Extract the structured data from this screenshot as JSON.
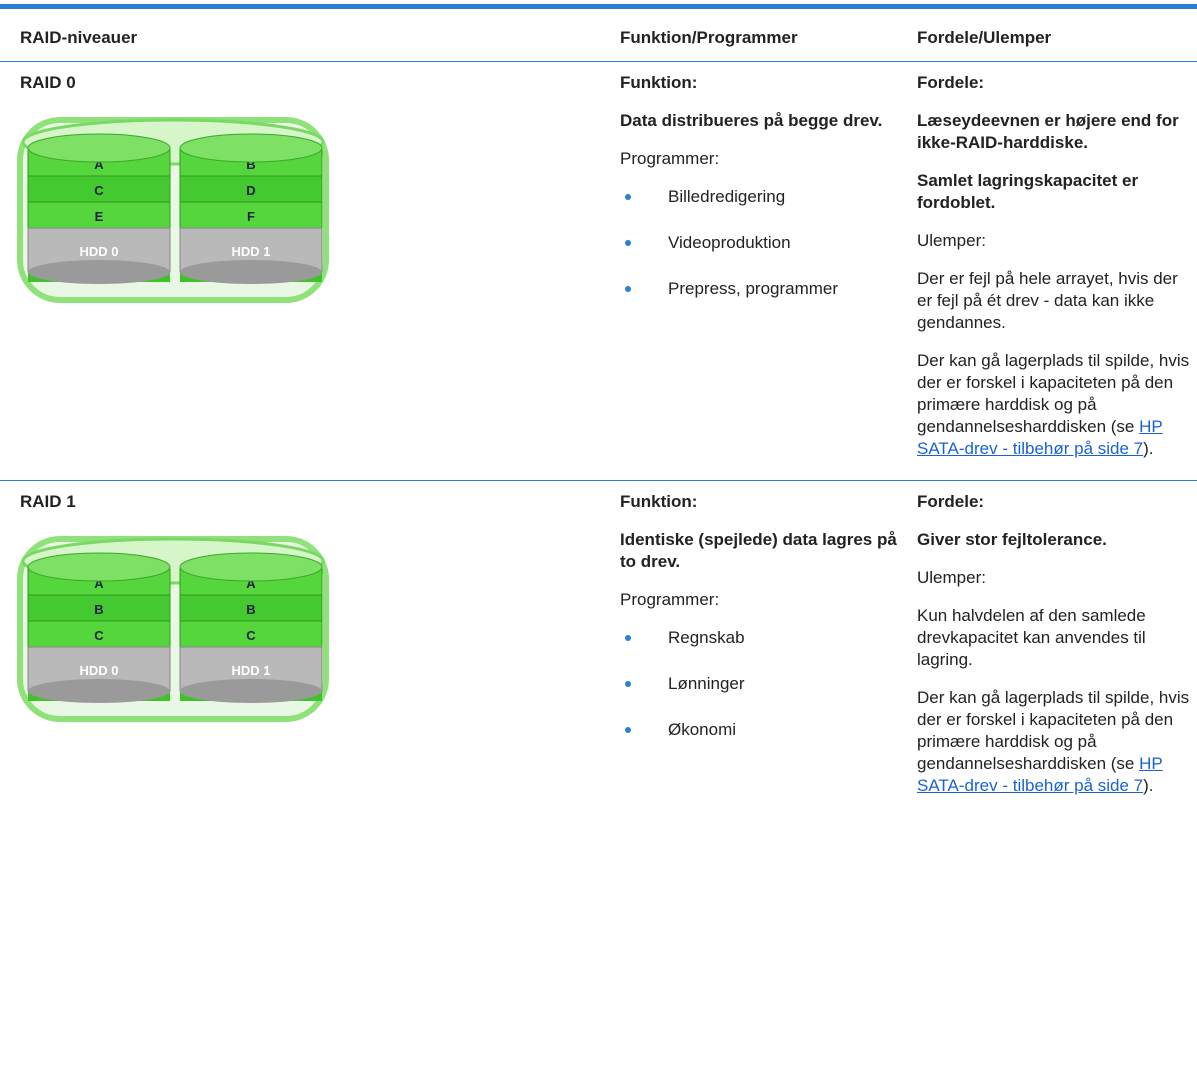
{
  "table": {
    "headers": [
      "RAID-niveauer",
      "Funktion/Programmer",
      "Fordele/Ulemper"
    ],
    "rows": [
      {
        "level": "RAID 0",
        "figure": {
          "disks": [
            {
              "blocks": [
                "A",
                "C",
                "E"
              ],
              "label": "HDD 0"
            },
            {
              "blocks": [
                "B",
                "D",
                "F"
              ],
              "label": "HDD 1"
            }
          ]
        },
        "function": {
          "heading": "Funktion:",
          "description": "Data distribueres på begge drev.",
          "programs_heading": "Programmer:",
          "programs": [
            "Billedredigering",
            "Videoproduktion",
            "Prepress, programmer"
          ]
        },
        "pros_cons": {
          "pros_heading": "Fordele:",
          "pros": [
            "Læseydeevnen er højere end for ikke-RAID-harddiske.",
            "Samlet lagringskapacitet er fordoblet."
          ],
          "cons_heading": "Ulemper:",
          "cons": [
            {
              "text": "Der er fejl på hele arrayet, hvis der er fejl på ét drev - data kan ikke gendannes."
            },
            {
              "text": "Der kan gå lagerplads til spilde, hvis der er forskel i kapaciteten på den primære harddisk og på gendannelsesharddisken (se",
              "link": "HP SATA-drev - tilbehør på side 7",
              "after": ")."
            }
          ]
        }
      },
      {
        "level": "RAID 1",
        "figure": {
          "disks": [
            {
              "blocks": [
                "A",
                "B",
                "C"
              ],
              "label": "HDD 0"
            },
            {
              "blocks": [
                "A",
                "B",
                "C"
              ],
              "label": "HDD 1"
            }
          ]
        },
        "function": {
          "heading": "Funktion:",
          "description": "Identiske (spejlede) data lagres på to drev.",
          "programs_heading": "Programmer:",
          "programs": [
            "Regnskab",
            "Lønninger",
            "Økonomi"
          ]
        },
        "pros_cons": {
          "pros_heading": "Fordele:",
          "pros": [
            "Giver stor fejltolerance."
          ],
          "cons_heading": "Ulemper:",
          "cons": [
            {
              "text": "Kun halvdelen af den samlede drevkapacitet kan anvendes til lagring."
            },
            {
              "text": "Der kan gå lagerplads til spilde, hvis der er forskel i kapaciteten på den primære harddisk og på gendannelsesharddisken (se",
              "link": "HP SATA-drev - tilbehør på side 7",
              "after": ")."
            }
          ]
        }
      }
    ]
  }
}
